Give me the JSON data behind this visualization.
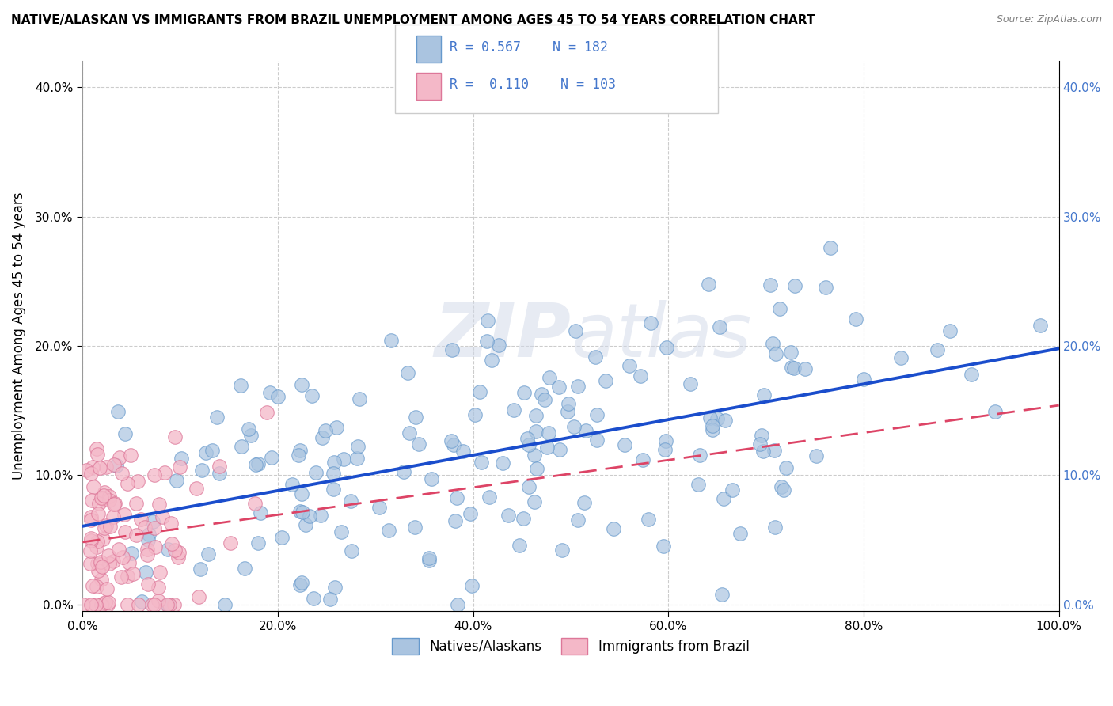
{
  "title": "NATIVE/ALASKAN VS IMMIGRANTS FROM BRAZIL UNEMPLOYMENT AMONG AGES 45 TO 54 YEARS CORRELATION CHART",
  "source": "Source: ZipAtlas.com",
  "ylabel": "Unemployment Among Ages 45 to 54 years",
  "xlim": [
    0,
    1.0
  ],
  "ylim": [
    -0.005,
    0.42
  ],
  "xticks": [
    0.0,
    0.2,
    0.4,
    0.6,
    0.8,
    1.0
  ],
  "xtick_labels": [
    "0.0%",
    "20.0%",
    "40.0%",
    "60.0%",
    "80.0%",
    "100.0%"
  ],
  "yticks": [
    0.0,
    0.1,
    0.2,
    0.3,
    0.4
  ],
  "ytick_labels": [
    "0.0%",
    "10.0%",
    "20.0%",
    "30.0%",
    "40.0%"
  ],
  "blue_R": 0.567,
  "blue_N": 182,
  "pink_R": 0.11,
  "pink_N": 103,
  "blue_color": "#aac4e0",
  "blue_edge_color": "#6699cc",
  "pink_color": "#f4b8c8",
  "pink_edge_color": "#dd7799",
  "blue_line_color": "#1a4dcc",
  "pink_line_color": "#dd4466",
  "watermark_color": "#d0d8e8",
  "legend_blue_label": "Natives/Alaskans",
  "legend_pink_label": "Immigrants from Brazil",
  "background_color": "#ffffff",
  "grid_color": "#cccccc",
  "right_tick_color": "#4477cc"
}
